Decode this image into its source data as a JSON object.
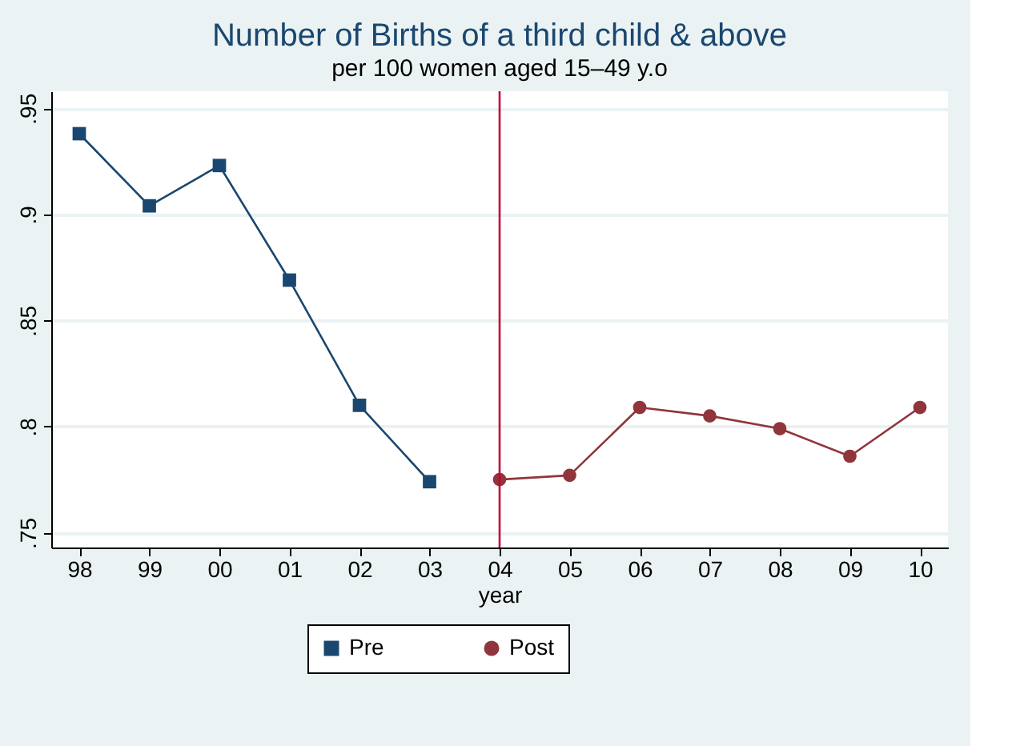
{
  "chart_data": {
    "type": "line",
    "title": "Number of Births of a third child & above",
    "subtitle": "per 100 women aged 15–49 y.o",
    "xlabel": "year",
    "categories": [
      "98",
      "99",
      "00",
      "01",
      "02",
      "03",
      "04",
      "05",
      "06",
      "07",
      "08",
      "09",
      "10"
    ],
    "series": [
      {
        "name": "Pre",
        "color": "#1a476f",
        "marker": "square",
        "values": [
          0.938,
          0.904,
          0.923,
          0.869,
          0.81,
          0.774,
          null,
          null,
          null,
          null,
          null,
          null,
          null
        ]
      },
      {
        "name": "Post",
        "color": "#90353b",
        "marker": "circle",
        "values": [
          null,
          null,
          null,
          null,
          null,
          null,
          0.775,
          0.777,
          0.809,
          0.805,
          0.799,
          0.786,
          0.809
        ]
      }
    ],
    "ylim": [
      0.743,
      0.958
    ],
    "yticks": [
      {
        "value": 0.75,
        "label": ".75"
      },
      {
        "value": 0.8,
        "label": ".8"
      },
      {
        "value": 0.85,
        "label": ".85"
      },
      {
        "value": 0.9,
        "label": ".9"
      },
      {
        "value": 0.95,
        "label": ".95"
      }
    ],
    "ref_lines": [
      {
        "axis": "x",
        "value": "04",
        "color": "#c10534"
      }
    ],
    "grid": "y",
    "legend": "bottom",
    "line_style": "solid"
  }
}
